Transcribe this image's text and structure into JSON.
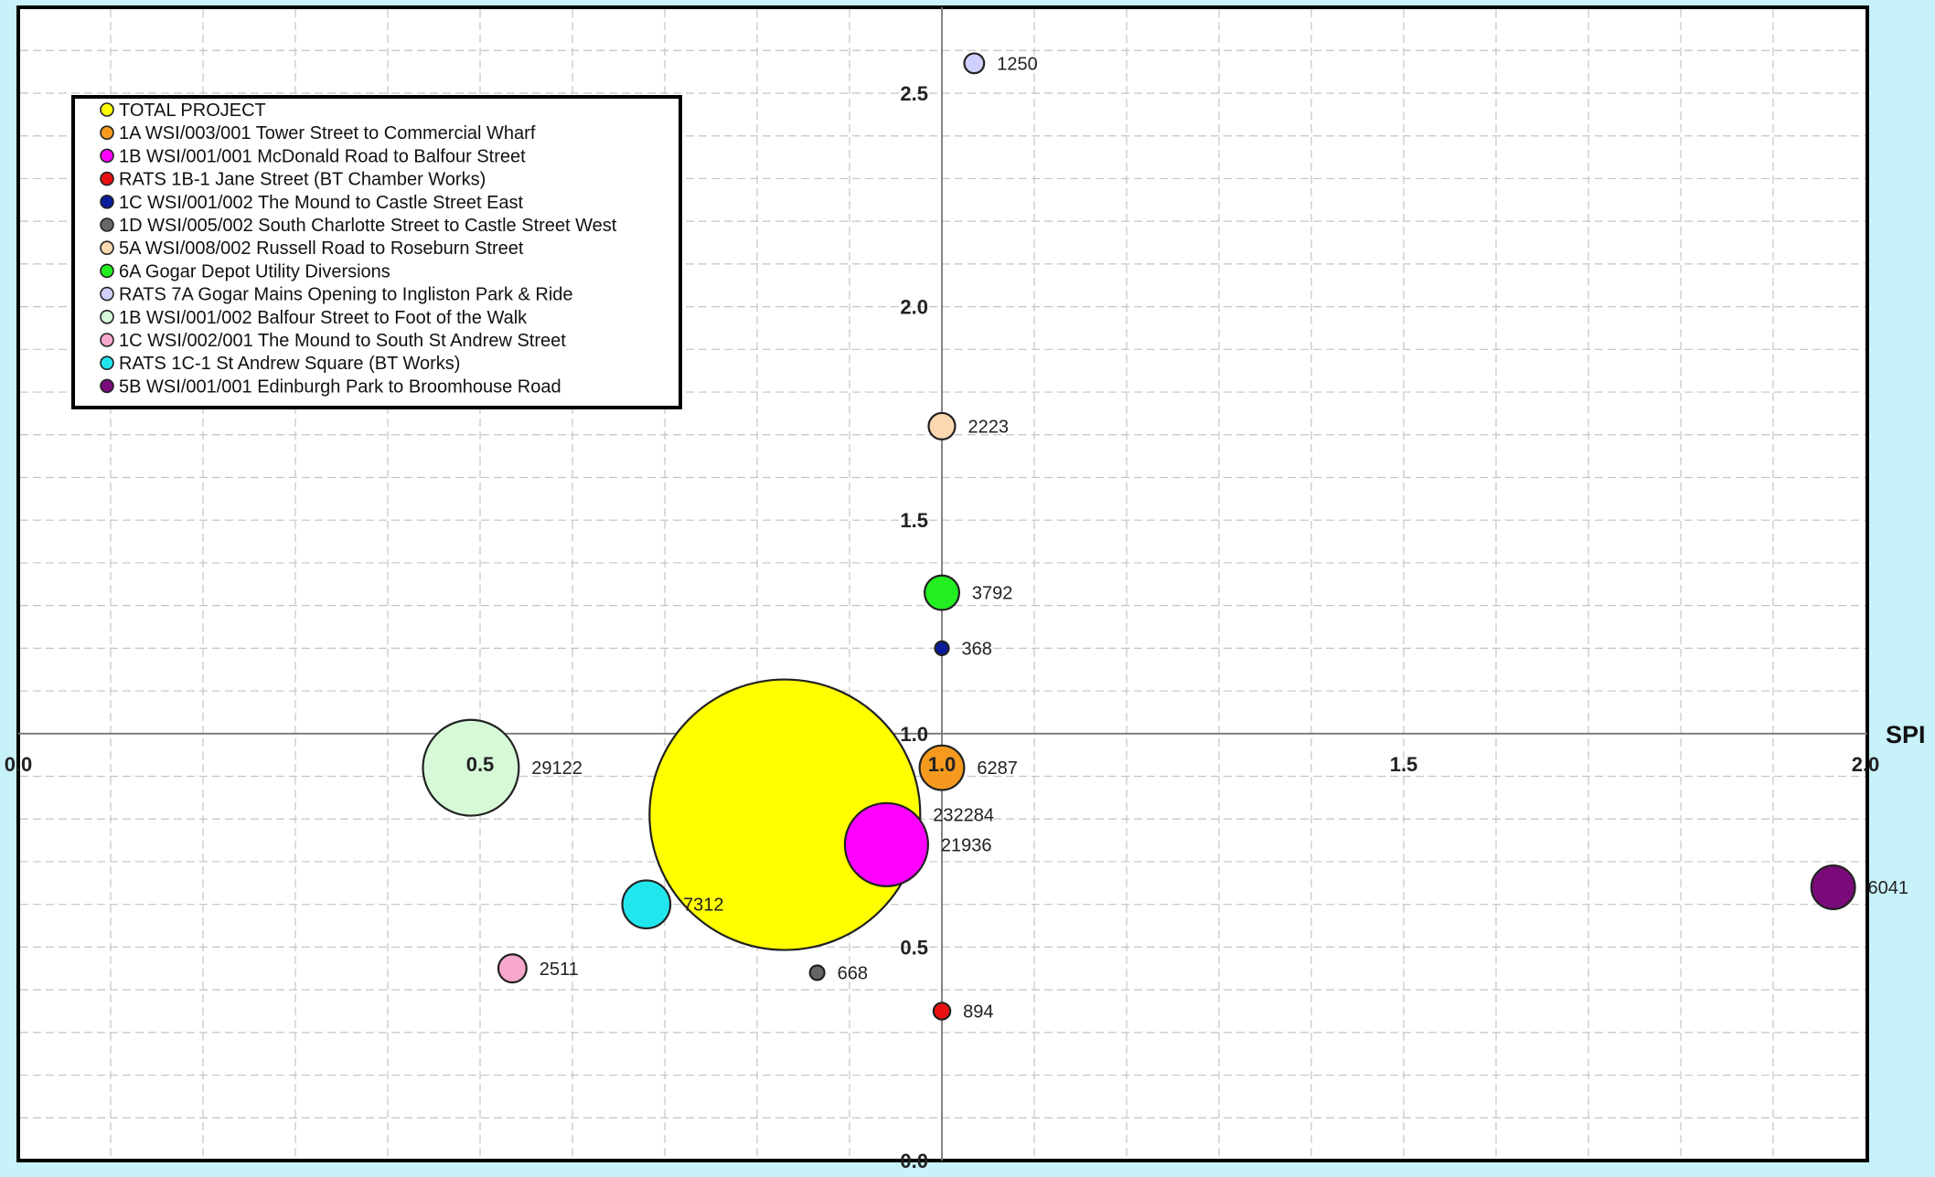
{
  "chart_data": {
    "type": "scatter",
    "title": "",
    "xlabel": "SPI",
    "ylabel": "",
    "xlim": [
      0.0,
      2.0
    ],
    "ylim": [
      0.0,
      2.7
    ],
    "grid": true,
    "legend_position": "top-left",
    "x_axis_crossing_y": 1.0,
    "y_axis_crossing_x": 1.0,
    "x_ticks": [
      {
        "value": 0.0,
        "label": "0.0"
      },
      {
        "value": 0.5,
        "label": "0.5"
      },
      {
        "value": 1.0,
        "label": "1.0"
      },
      {
        "value": 1.5,
        "label": "1.5"
      },
      {
        "value": 2.0,
        "label": "2.0"
      }
    ],
    "y_ticks": [
      {
        "value": 0.0,
        "label": "0.0"
      },
      {
        "value": 0.5,
        "label": "0.5"
      },
      {
        "value": 1.0,
        "label": "1.0"
      },
      {
        "value": 1.5,
        "label": "1.5"
      },
      {
        "value": 2.0,
        "label": "2.0"
      },
      {
        "value": 2.5,
        "label": "2.5"
      }
    ],
    "series": [
      {
        "name": "TOTAL PROJECT",
        "color": "#ffff00",
        "x": 0.83,
        "y": 0.81,
        "value": 232284,
        "label": "232284"
      },
      {
        "name": "1A WSI/003/001 Tower Street to Commercial Wharf",
        "color": "#f59a1e",
        "x": 1.0,
        "y": 0.92,
        "value": 6287,
        "label": "6287"
      },
      {
        "name": "1B WSI/001/001 McDonald Road to Balfour Street",
        "color": "#ff00ff",
        "x": 0.94,
        "y": 0.74,
        "value": 21936,
        "label": "21936"
      },
      {
        "name": "RATS 1B-1 Jane Street (BT Chamber Works)",
        "color": "#e81010",
        "x": 1.0,
        "y": 0.35,
        "value": 894,
        "label": "894"
      },
      {
        "name": "1C WSI/001/002 The Mound to Castle Street East",
        "color": "#0a1a9c",
        "x": 1.0,
        "y": 1.2,
        "value": 368,
        "label": "368"
      },
      {
        "name": "1D WSI/005/002 South Charlotte Street to Castle Street West",
        "color": "#666666",
        "x": 0.865,
        "y": 0.44,
        "value": 668,
        "label": "668"
      },
      {
        "name": "5A WSI/008/002 Russell Road to Roseburn Street",
        "color": "#fcd8b0",
        "x": 1.0,
        "y": 1.72,
        "value": 2223,
        "label": "2223"
      },
      {
        "name": "6A Gogar Depot Utility Diversions",
        "color": "#22ee22",
        "x": 1.0,
        "y": 1.33,
        "value": 3792,
        "label": "3792"
      },
      {
        "name": "RATS 7A Gogar Mains Opening to Ingliston Park & Ride",
        "color": "#d0d0ff",
        "x": 1.035,
        "y": 2.57,
        "value": 1250,
        "label": "1250"
      },
      {
        "name": "1B WSI/001/002 Balfour Street to Foot of the Walk",
        "color": "#d6fad8",
        "x": 0.49,
        "y": 0.92,
        "value": 29122,
        "label": "29122"
      },
      {
        "name": "1C WSI/002/001 The Mound to South St Andrew Street",
        "color": "#f7a8cc",
        "x": 0.535,
        "y": 0.45,
        "value": 2511,
        "label": "2511"
      },
      {
        "name": "RATS 1C-1 St Andrew Square (BT Works)",
        "color": "#22e6ee",
        "x": 0.68,
        "y": 0.6,
        "value": 7312,
        "label": "7312"
      },
      {
        "name": "5B WSI/001/001 Edinburgh Park to Broomhouse Road",
        "color": "#7a0a7a",
        "x": 1.965,
        "y": 0.64,
        "value": 6041,
        "label": "6041"
      }
    ]
  }
}
